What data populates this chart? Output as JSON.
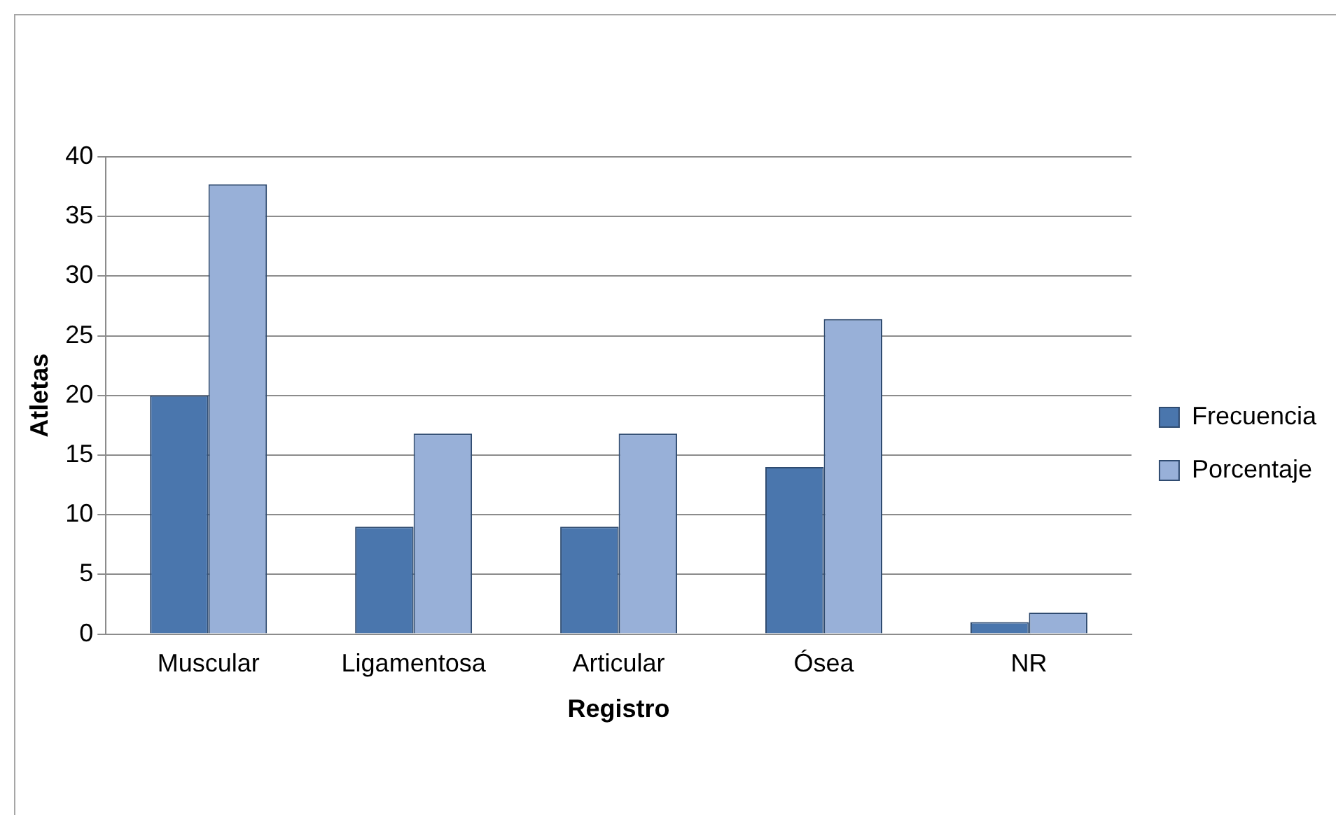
{
  "chart_data": {
    "type": "bar",
    "xlabel": "Registro",
    "ylabel": "Atletas",
    "categories": [
      "Muscular",
      "Ligamentosa",
      "Articular",
      "Ósea",
      "NR"
    ],
    "series": [
      {
        "name": "Frecuencia",
        "color": "#4a76ad",
        "values": [
          20,
          9,
          9,
          14,
          1
        ]
      },
      {
        "name": "Porcentaje",
        "color": "#98b0d8",
        "values": [
          37.7,
          16.8,
          16.8,
          26.4,
          1.8
        ]
      }
    ],
    "ylim": [
      0,
      40
    ],
    "yticks": [
      0,
      5,
      10,
      15,
      20,
      25,
      30,
      35,
      40
    ],
    "grid": "y",
    "legend": "right"
  }
}
